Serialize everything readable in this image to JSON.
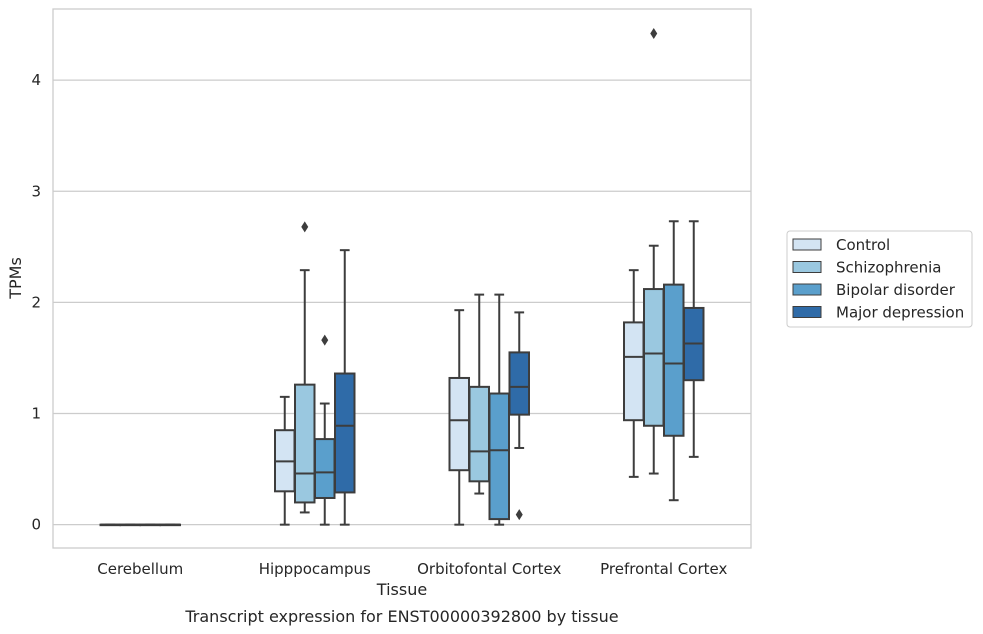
{
  "caption": "Transcript expression for ENST00000392800 by tissue",
  "chart_data": {
    "type": "box",
    "xlabel": "Tissue",
    "ylabel": "TPMs",
    "ylim": [
      -0.21,
      4.64
    ],
    "yticks": [
      0,
      1,
      2,
      3,
      4
    ],
    "grid": "horizontal",
    "legend_placement": "right",
    "categories": [
      "Cerebellum",
      "Hipppocampus",
      "Orbitofontal Cortex",
      "Prefrontal Cortex"
    ],
    "series": [
      {
        "name": "Control",
        "color": "#d3e4f3",
        "boxes": [
          {
            "min": 0,
            "q1": 0,
            "median": 0,
            "q3": 0,
            "max": 0,
            "outliers": []
          },
          {
            "min": 0.0,
            "q1": 0.3,
            "median": 0.57,
            "q3": 0.85,
            "max": 1.15,
            "outliers": []
          },
          {
            "min": 0.0,
            "q1": 0.49,
            "median": 0.94,
            "q3": 1.32,
            "max": 1.93,
            "outliers": []
          },
          {
            "min": 0.43,
            "q1": 0.94,
            "median": 1.51,
            "q3": 1.82,
            "max": 2.29,
            "outliers": []
          }
        ]
      },
      {
        "name": "Schizophrenia",
        "color": "#9ac8e0",
        "boxes": [
          {
            "min": 0,
            "q1": 0,
            "median": 0,
            "q3": 0,
            "max": 0,
            "outliers": []
          },
          {
            "min": 0.11,
            "q1": 0.2,
            "median": 0.46,
            "q3": 1.26,
            "max": 2.29,
            "outliers": [
              2.68
            ]
          },
          {
            "min": 0.28,
            "q1": 0.39,
            "median": 0.66,
            "q3": 1.24,
            "max": 2.07,
            "outliers": []
          },
          {
            "min": 0.46,
            "q1": 0.89,
            "median": 1.54,
            "q3": 2.12,
            "max": 2.51,
            "outliers": [
              4.42
            ]
          }
        ]
      },
      {
        "name": "Bipolar disorder",
        "color": "#5a9fcc",
        "boxes": [
          {
            "min": 0,
            "q1": 0,
            "median": 0,
            "q3": 0,
            "max": 0,
            "outliers": []
          },
          {
            "min": 0.0,
            "q1": 0.24,
            "median": 0.47,
            "q3": 0.77,
            "max": 1.09,
            "outliers": [
              1.66
            ]
          },
          {
            "min": 0.0,
            "q1": 0.05,
            "median": 0.67,
            "q3": 1.18,
            "max": 2.07,
            "outliers": []
          },
          {
            "min": 0.22,
            "q1": 0.8,
            "median": 1.45,
            "q3": 2.16,
            "max": 2.73,
            "outliers": []
          }
        ]
      },
      {
        "name": "Major depression",
        "color": "#2f6ba8",
        "boxes": [
          {
            "min": 0,
            "q1": 0,
            "median": 0,
            "q3": 0,
            "max": 0,
            "outliers": []
          },
          {
            "min": 0.0,
            "q1": 0.29,
            "median": 0.89,
            "q3": 1.36,
            "max": 2.47,
            "outliers": []
          },
          {
            "min": 0.69,
            "q1": 0.99,
            "median": 1.24,
            "q3": 1.55,
            "max": 1.91,
            "outliers": [
              0.09
            ]
          },
          {
            "min": 0.61,
            "q1": 1.3,
            "median": 1.63,
            "q3": 1.95,
            "max": 2.73,
            "outliers": []
          }
        ]
      }
    ]
  }
}
